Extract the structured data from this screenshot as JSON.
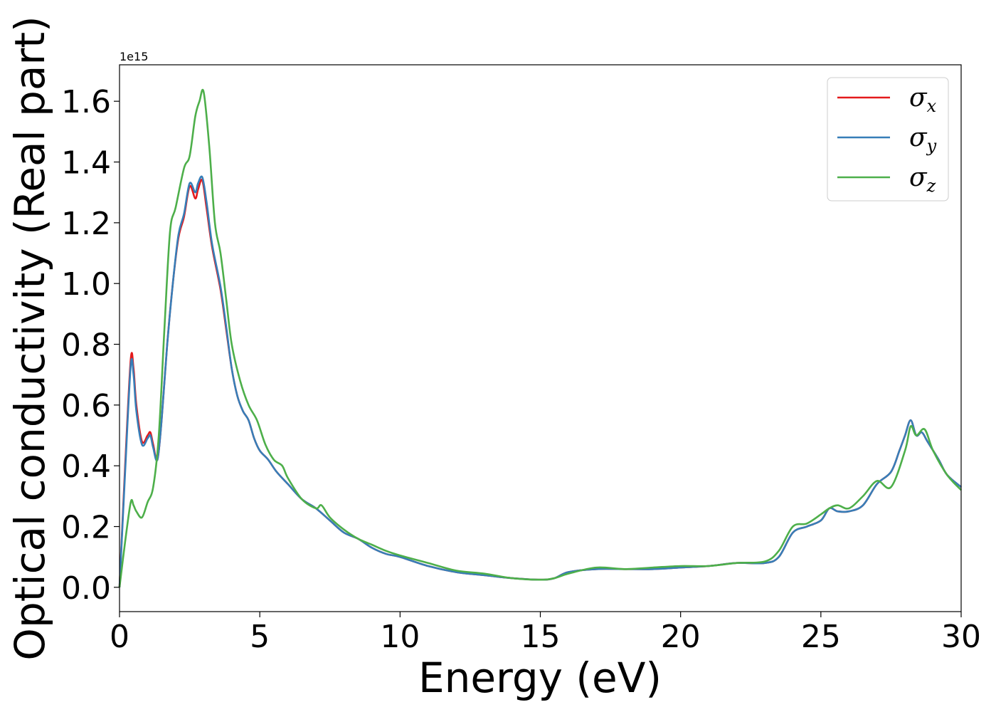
{
  "chart_data": {
    "type": "line",
    "title": "",
    "xlabel": "Energy (eV)",
    "ylabel": "Optical conductivity (Real part)",
    "y_offset_label": "1e15",
    "xlim": [
      0,
      30
    ],
    "ylim": [
      -0.08,
      1.72
    ],
    "xticks": [
      0,
      5,
      10,
      15,
      20,
      25,
      30
    ],
    "xtick_labels": [
      "0",
      "5",
      "10",
      "15",
      "20",
      "25",
      "30"
    ],
    "yticks": [
      0.0,
      0.2,
      0.4,
      0.6,
      0.8,
      1.0,
      1.2,
      1.4,
      1.6
    ],
    "ytick_labels": [
      "0.0",
      "0.2",
      "0.4",
      "0.6",
      "0.8",
      "1.0",
      "1.2",
      "1.4",
      "1.6"
    ],
    "grid": false,
    "legend_position": "top-right",
    "series": [
      {
        "name": "σx",
        "symbol": "σ",
        "subscript": "x",
        "color": "#e41a1c",
        "points": [
          [
            0,
            0
          ],
          [
            0.2,
            0.4
          ],
          [
            0.4,
            0.75
          ],
          [
            0.5,
            0.72
          ],
          [
            0.6,
            0.6
          ],
          [
            0.8,
            0.48
          ],
          [
            1.0,
            0.5
          ],
          [
            1.1,
            0.51
          ],
          [
            1.2,
            0.47
          ],
          [
            1.35,
            0.42
          ],
          [
            1.5,
            0.55
          ],
          [
            1.7,
            0.8
          ],
          [
            1.9,
            1.0
          ],
          [
            2.1,
            1.15
          ],
          [
            2.3,
            1.22
          ],
          [
            2.5,
            1.32
          ],
          [
            2.7,
            1.28
          ],
          [
            2.8,
            1.31
          ],
          [
            2.95,
            1.34
          ],
          [
            3.1,
            1.25
          ],
          [
            3.3,
            1.12
          ],
          [
            3.6,
            0.98
          ],
          [
            3.8,
            0.85
          ],
          [
            4.0,
            0.72
          ],
          [
            4.2,
            0.63
          ],
          [
            4.4,
            0.58
          ],
          [
            4.6,
            0.55
          ],
          [
            4.8,
            0.49
          ],
          [
            5.0,
            0.45
          ],
          [
            5.3,
            0.42
          ],
          [
            5.6,
            0.38
          ],
          [
            6.0,
            0.34
          ],
          [
            6.5,
            0.29
          ],
          [
            7.0,
            0.26
          ],
          [
            7.5,
            0.22
          ],
          [
            8.0,
            0.18
          ],
          [
            8.5,
            0.16
          ],
          [
            9.0,
            0.13
          ],
          [
            9.5,
            0.11
          ],
          [
            10.0,
            0.1
          ],
          [
            11.0,
            0.07
          ],
          [
            12.0,
            0.05
          ],
          [
            13.0,
            0.04
          ],
          [
            14.0,
            0.03
          ],
          [
            15.0,
            0.025
          ],
          [
            15.5,
            0.03
          ],
          [
            16.0,
            0.05
          ],
          [
            17.0,
            0.06
          ],
          [
            18.0,
            0.06
          ],
          [
            19.0,
            0.06
          ],
          [
            20.0,
            0.065
          ],
          [
            21.0,
            0.07
          ],
          [
            22.0,
            0.08
          ],
          [
            23.0,
            0.08
          ],
          [
            23.5,
            0.1
          ],
          [
            24.0,
            0.18
          ],
          [
            24.5,
            0.2
          ],
          [
            25.0,
            0.22
          ],
          [
            25.3,
            0.26
          ],
          [
            25.6,
            0.25
          ],
          [
            26.0,
            0.25
          ],
          [
            26.5,
            0.27
          ],
          [
            27.0,
            0.34
          ],
          [
            27.5,
            0.38
          ],
          [
            27.8,
            0.45
          ],
          [
            28.0,
            0.5
          ],
          [
            28.2,
            0.55
          ],
          [
            28.4,
            0.5
          ],
          [
            28.6,
            0.51
          ],
          [
            28.8,
            0.48
          ],
          [
            29.2,
            0.42
          ],
          [
            29.5,
            0.37
          ],
          [
            30.0,
            0.33
          ]
        ]
      },
      {
        "name": "σy",
        "symbol": "σ",
        "subscript": "y",
        "color": "#377eb8",
        "points": [
          [
            0,
            0
          ],
          [
            0.2,
            0.38
          ],
          [
            0.4,
            0.73
          ],
          [
            0.5,
            0.7
          ],
          [
            0.6,
            0.58
          ],
          [
            0.8,
            0.47
          ],
          [
            1.0,
            0.49
          ],
          [
            1.1,
            0.5
          ],
          [
            1.2,
            0.46
          ],
          [
            1.35,
            0.42
          ],
          [
            1.5,
            0.55
          ],
          [
            1.7,
            0.8
          ],
          [
            1.9,
            1.0
          ],
          [
            2.1,
            1.16
          ],
          [
            2.3,
            1.23
          ],
          [
            2.5,
            1.33
          ],
          [
            2.7,
            1.3
          ],
          [
            2.8,
            1.33
          ],
          [
            2.95,
            1.35
          ],
          [
            3.1,
            1.27
          ],
          [
            3.3,
            1.13
          ],
          [
            3.6,
            0.99
          ],
          [
            3.8,
            0.86
          ],
          [
            4.0,
            0.72
          ],
          [
            4.2,
            0.63
          ],
          [
            4.4,
            0.58
          ],
          [
            4.6,
            0.55
          ],
          [
            4.8,
            0.49
          ],
          [
            5.0,
            0.45
          ],
          [
            5.3,
            0.42
          ],
          [
            5.6,
            0.38
          ],
          [
            6.0,
            0.34
          ],
          [
            6.5,
            0.29
          ],
          [
            7.0,
            0.26
          ],
          [
            7.5,
            0.22
          ],
          [
            8.0,
            0.18
          ],
          [
            8.5,
            0.16
          ],
          [
            9.0,
            0.13
          ],
          [
            9.5,
            0.11
          ],
          [
            10.0,
            0.1
          ],
          [
            11.0,
            0.07
          ],
          [
            12.0,
            0.05
          ],
          [
            13.0,
            0.04
          ],
          [
            14.0,
            0.03
          ],
          [
            15.0,
            0.025
          ],
          [
            15.5,
            0.03
          ],
          [
            16.0,
            0.05
          ],
          [
            17.0,
            0.06
          ],
          [
            18.0,
            0.06
          ],
          [
            19.0,
            0.06
          ],
          [
            20.0,
            0.065
          ],
          [
            21.0,
            0.07
          ],
          [
            22.0,
            0.08
          ],
          [
            23.0,
            0.08
          ],
          [
            23.5,
            0.1
          ],
          [
            24.0,
            0.18
          ],
          [
            24.5,
            0.2
          ],
          [
            25.0,
            0.22
          ],
          [
            25.3,
            0.26
          ],
          [
            25.6,
            0.25
          ],
          [
            26.0,
            0.25
          ],
          [
            26.5,
            0.27
          ],
          [
            27.0,
            0.34
          ],
          [
            27.5,
            0.38
          ],
          [
            27.8,
            0.45
          ],
          [
            28.0,
            0.5
          ],
          [
            28.2,
            0.55
          ],
          [
            28.4,
            0.5
          ],
          [
            28.6,
            0.51
          ],
          [
            28.8,
            0.48
          ],
          [
            29.2,
            0.42
          ],
          [
            29.5,
            0.37
          ],
          [
            30.0,
            0.33
          ]
        ]
      },
      {
        "name": "σz",
        "symbol": "σ",
        "subscript": "z",
        "color": "#4daf4a",
        "points": [
          [
            0,
            0
          ],
          [
            0.2,
            0.15
          ],
          [
            0.4,
            0.28
          ],
          [
            0.5,
            0.27
          ],
          [
            0.6,
            0.25
          ],
          [
            0.8,
            0.23
          ],
          [
            1.0,
            0.28
          ],
          [
            1.2,
            0.33
          ],
          [
            1.4,
            0.5
          ],
          [
            1.6,
            0.85
          ],
          [
            1.8,
            1.17
          ],
          [
            2.0,
            1.25
          ],
          [
            2.3,
            1.38
          ],
          [
            2.5,
            1.42
          ],
          [
            2.7,
            1.55
          ],
          [
            2.85,
            1.6
          ],
          [
            3.0,
            1.63
          ],
          [
            3.2,
            1.45
          ],
          [
            3.4,
            1.2
          ],
          [
            3.6,
            1.1
          ],
          [
            3.8,
            0.95
          ],
          [
            4.0,
            0.8
          ],
          [
            4.3,
            0.68
          ],
          [
            4.6,
            0.6
          ],
          [
            4.9,
            0.55
          ],
          [
            5.2,
            0.47
          ],
          [
            5.5,
            0.42
          ],
          [
            5.8,
            0.4
          ],
          [
            6.0,
            0.36
          ],
          [
            6.5,
            0.29
          ],
          [
            7.0,
            0.26
          ],
          [
            7.2,
            0.27
          ],
          [
            7.5,
            0.23
          ],
          [
            8.0,
            0.19
          ],
          [
            8.5,
            0.16
          ],
          [
            9.0,
            0.14
          ],
          [
            9.5,
            0.12
          ],
          [
            10.0,
            0.105
          ],
          [
            11.0,
            0.08
          ],
          [
            12.0,
            0.055
          ],
          [
            13.0,
            0.045
          ],
          [
            14.0,
            0.03
          ],
          [
            15.0,
            0.025
          ],
          [
            15.5,
            0.03
          ],
          [
            16.0,
            0.045
          ],
          [
            17.0,
            0.065
          ],
          [
            18.0,
            0.06
          ],
          [
            19.0,
            0.065
          ],
          [
            20.0,
            0.07
          ],
          [
            21.0,
            0.07
          ],
          [
            22.0,
            0.08
          ],
          [
            23.0,
            0.085
          ],
          [
            23.5,
            0.12
          ],
          [
            24.0,
            0.2
          ],
          [
            24.5,
            0.21
          ],
          [
            25.0,
            0.24
          ],
          [
            25.3,
            0.26
          ],
          [
            25.6,
            0.27
          ],
          [
            26.0,
            0.26
          ],
          [
            26.5,
            0.3
          ],
          [
            27.0,
            0.35
          ],
          [
            27.5,
            0.33
          ],
          [
            28.0,
            0.45
          ],
          [
            28.2,
            0.53
          ],
          [
            28.4,
            0.5
          ],
          [
            28.7,
            0.52
          ],
          [
            29.0,
            0.45
          ],
          [
            29.5,
            0.37
          ],
          [
            30.0,
            0.32
          ]
        ]
      }
    ]
  }
}
